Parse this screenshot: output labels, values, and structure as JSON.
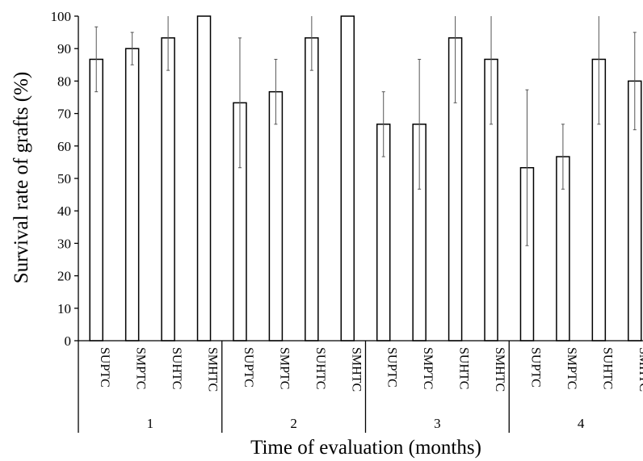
{
  "chart_data": {
    "type": "bar",
    "xlabel": "Time of evaluation (months)",
    "ylabel": "Survival rate of grafts (%)",
    "ylim": [
      0,
      100
    ],
    "yticks": [
      "0",
      "10",
      "20",
      "30",
      "40",
      "50",
      "60",
      "70",
      "80",
      "90",
      "100"
    ],
    "grid": false,
    "legend": "none",
    "bar_fill": "#ffffff",
    "bar_stroke": "#000000",
    "error_bar_color": "#555555",
    "groups": [
      {
        "label": "1",
        "bars": [
          {
            "category": "SUPTC",
            "value": 86.7,
            "error": 10
          },
          {
            "category": "SMPTC",
            "value": 90.0,
            "error": 5
          },
          {
            "category": "SUHTC",
            "value": 93.3,
            "error": 10
          },
          {
            "category": "SMHTC",
            "value": 100.0,
            "error": 0
          }
        ]
      },
      {
        "label": "2",
        "bars": [
          {
            "category": "SUPTC",
            "value": 73.3,
            "error": 20
          },
          {
            "category": "SMPTC",
            "value": 76.7,
            "error": 10
          },
          {
            "category": "SUHTC",
            "value": 93.3,
            "error": 10
          },
          {
            "category": "SMHTC",
            "value": 100.0,
            "error": 0
          }
        ]
      },
      {
        "label": "3",
        "bars": [
          {
            "category": "SUPTC",
            "value": 66.7,
            "error": 10
          },
          {
            "category": "SMPTC",
            "value": 66.7,
            "error": 20
          },
          {
            "category": "SUHTC",
            "value": 93.3,
            "error": 20
          },
          {
            "category": "SMHTC",
            "value": 86.7,
            "error": 20
          }
        ]
      },
      {
        "label": "4",
        "bars": [
          {
            "category": "SUPTC",
            "value": 53.3,
            "error": 24
          },
          {
            "category": "SMPTC",
            "value": 56.7,
            "error": 10
          },
          {
            "category": "SUHTC",
            "value": 86.7,
            "error": 20
          },
          {
            "category": "SMHTC",
            "value": 80.0,
            "error": 15
          }
        ]
      }
    ]
  }
}
